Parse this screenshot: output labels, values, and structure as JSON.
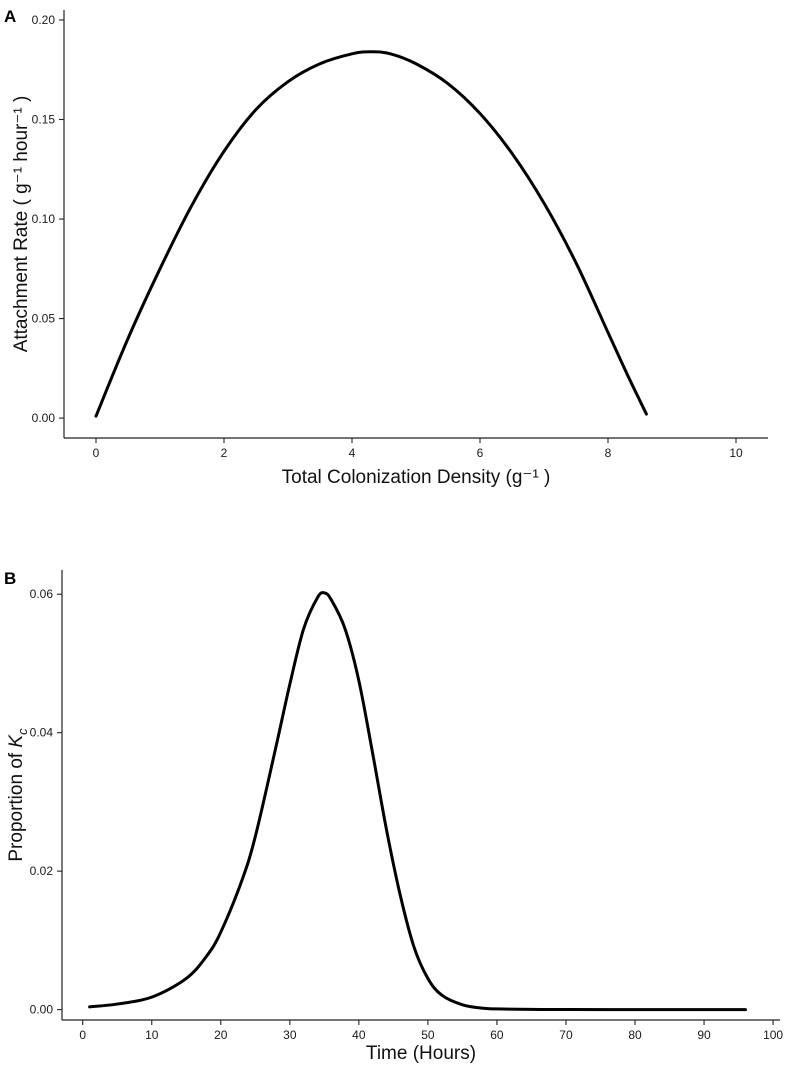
{
  "panels": {
    "a": {
      "letter": "A"
    },
    "b": {
      "letter": "B"
    }
  },
  "chart_data": [
    {
      "type": "line",
      "panel": "A",
      "xlabel": "Total Colonization Density (g⁻¹ )",
      "ylabel": "Attachment Rate ( g⁻¹ hour⁻¹ )",
      "xlim": [
        -0.5,
        10.5
      ],
      "ylim": [
        -0.01,
        0.205
      ],
      "xticks": [
        0,
        2,
        4,
        6,
        8,
        10
      ],
      "xtick_labels": [
        "0",
        "2",
        "4",
        "6",
        "8",
        "10"
      ],
      "yticks": [
        0.0,
        0.05,
        0.1,
        0.15,
        0.2
      ],
      "ytick_labels": [
        "0.00",
        "0.05",
        "0.10",
        "0.15",
        "0.20"
      ],
      "grid": false,
      "series": [
        {
          "x": [
            0,
            0.5,
            1,
            1.5,
            2,
            2.5,
            3,
            3.5,
            4,
            4.3,
            4.6,
            5,
            5.5,
            6,
            6.5,
            7,
            7.5,
            8,
            8.3,
            8.6
          ],
          "y": [
            0.001,
            0.04,
            0.075,
            0.107,
            0.134,
            0.155,
            0.169,
            0.178,
            0.183,
            0.184,
            0.183,
            0.178,
            0.168,
            0.153,
            0.133,
            0.108,
            0.078,
            0.043,
            0.022,
            0.002
          ]
        }
      ]
    },
    {
      "type": "line",
      "panel": "B",
      "xlabel": "Time (Hours)",
      "ylabel": "Proportion of Kc",
      "ylabel_parts": {
        "main": "Proportion of ",
        "italic": "K",
        "subscript": "c"
      },
      "xlim": [
        -3,
        101
      ],
      "ylim": [
        -0.0015,
        0.0635
      ],
      "xticks": [
        0,
        10,
        20,
        30,
        40,
        50,
        60,
        70,
        80,
        90,
        100
      ],
      "xtick_labels": [
        "0",
        "10",
        "20",
        "30",
        "40",
        "50",
        "60",
        "70",
        "80",
        "90",
        "100"
      ],
      "yticks": [
        0.0,
        0.02,
        0.04,
        0.06
      ],
      "ytick_labels": [
        "0.00",
        "0.02",
        "0.04",
        "0.06"
      ],
      "grid": false,
      "series": [
        {
          "x": [
            1,
            5,
            10,
            15,
            18,
            20,
            23,
            25,
            28,
            30,
            32,
            34,
            35,
            36,
            38,
            40,
            42,
            44,
            46,
            48,
            50,
            52,
            55,
            58,
            60,
            65,
            70,
            80,
            90,
            96
          ],
          "y": [
            0.0004,
            0.0008,
            0.0018,
            0.0045,
            0.0078,
            0.0112,
            0.0185,
            0.025,
            0.038,
            0.047,
            0.055,
            0.0595,
            0.0602,
            0.0592,
            0.055,
            0.0475,
            0.037,
            0.026,
            0.0165,
            0.009,
            0.0045,
            0.0021,
            0.0007,
            0.0002,
            0.0001,
            3e-05,
            1e-05,
            0.0,
            0.0,
            0.0
          ]
        }
      ]
    }
  ]
}
